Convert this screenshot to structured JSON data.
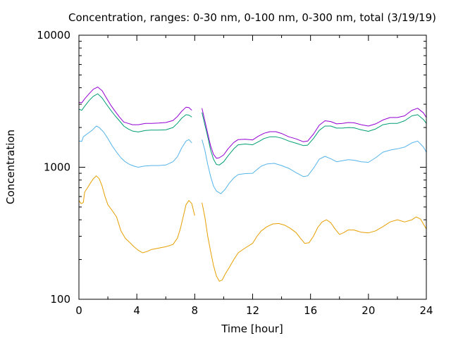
{
  "chart_data": {
    "type": "line",
    "title": "Concentration, ranges: 0-30 nm, 0-100 nm, 0-300 nm, total (3/19/19)",
    "xlabel": "Time [hour]",
    "ylabel": "Concentration",
    "xlim": [
      0,
      24
    ],
    "ylim": [
      100,
      10000
    ],
    "yscale": "log",
    "grid": false,
    "xticks": [
      "0",
      "4",
      "8",
      "12",
      "16",
      "20",
      "24"
    ],
    "yticks": [
      "100",
      "1000",
      "10000"
    ],
    "series": [
      {
        "color": "#e69f00",
        "segments": [
          [
            [
              0,
              560
            ],
            [
              0.15,
              530
            ],
            [
              0.3,
              540
            ],
            [
              0.4,
              650
            ],
            [
              0.6,
              700
            ],
            [
              0.8,
              760
            ],
            [
              1.0,
              820
            ],
            [
              1.2,
              860
            ],
            [
              1.4,
              820
            ],
            [
              1.6,
              720
            ],
            [
              1.8,
              600
            ],
            [
              2.0,
              520
            ],
            [
              2.3,
              470
            ],
            [
              2.6,
              420
            ],
            [
              2.9,
              330
            ],
            [
              3.2,
              290
            ],
            [
              3.5,
              270
            ],
            [
              3.8,
              250
            ],
            [
              4.1,
              235
            ],
            [
              4.4,
              225
            ],
            [
              4.7,
              230
            ],
            [
              5.0,
              238
            ],
            [
              5.5,
              244
            ],
            [
              6.0,
              250
            ],
            [
              6.5,
              260
            ],
            [
              6.8,
              290
            ],
            [
              7.0,
              340
            ],
            [
              7.2,
              420
            ],
            [
              7.4,
              520
            ],
            [
              7.6,
              560
            ],
            [
              7.8,
              530
            ],
            [
              8.0,
              430
            ]
          ],
          [
            [
              8.5,
              540
            ],
            [
              8.7,
              420
            ],
            [
              8.9,
              300
            ],
            [
              9.1,
              230
            ],
            [
              9.3,
              180
            ],
            [
              9.5,
              150
            ],
            [
              9.7,
              137
            ],
            [
              9.9,
              140
            ],
            [
              10.1,
              155
            ],
            [
              10.4,
              175
            ],
            [
              10.7,
              200
            ],
            [
              11.0,
              225
            ],
            [
              11.5,
              245
            ],
            [
              12.0,
              265
            ],
            [
              12.3,
              300
            ],
            [
              12.6,
              330
            ],
            [
              13.0,
              355
            ],
            [
              13.4,
              372
            ],
            [
              13.8,
              375
            ],
            [
              14.2,
              365
            ],
            [
              14.6,
              345
            ],
            [
              15.0,
              320
            ],
            [
              15.3,
              290
            ],
            [
              15.6,
              265
            ],
            [
              15.9,
              268
            ],
            [
              16.2,
              300
            ],
            [
              16.5,
              350
            ],
            [
              16.8,
              385
            ],
            [
              17.1,
              400
            ],
            [
              17.4,
              380
            ],
            [
              17.7,
              340
            ],
            [
              18.0,
              310
            ],
            [
              18.3,
              320
            ],
            [
              18.6,
              335
            ],
            [
              19.0,
              335
            ],
            [
              19.5,
              322
            ],
            [
              20.0,
              318
            ],
            [
              20.5,
              330
            ],
            [
              21.0,
              355
            ],
            [
              21.5,
              385
            ],
            [
              22.0,
              400
            ],
            [
              22.5,
              385
            ],
            [
              23.0,
              400
            ],
            [
              23.3,
              420
            ],
            [
              23.6,
              405
            ],
            [
              24.0,
              340
            ]
          ]
        ]
      },
      {
        "color": "#56b4e9",
        "segments": [
          [
            [
              0,
              1580
            ],
            [
              0.2,
              1570
            ],
            [
              0.3,
              1700
            ],
            [
              0.6,
              1800
            ],
            [
              0.9,
              1900
            ],
            [
              1.2,
              2050
            ],
            [
              1.4,
              2000
            ],
            [
              1.7,
              1850
            ],
            [
              2.0,
              1650
            ],
            [
              2.3,
              1450
            ],
            [
              2.6,
              1300
            ],
            [
              2.9,
              1180
            ],
            [
              3.2,
              1100
            ],
            [
              3.5,
              1050
            ],
            [
              3.8,
              1020
            ],
            [
              4.1,
              1000
            ],
            [
              4.5,
              1020
            ],
            [
              5.0,
              1030
            ],
            [
              5.5,
              1030
            ],
            [
              6.0,
              1040
            ],
            [
              6.5,
              1100
            ],
            [
              6.8,
              1200
            ],
            [
              7.1,
              1400
            ],
            [
              7.4,
              1580
            ],
            [
              7.6,
              1620
            ],
            [
              7.8,
              1530
            ]
          ],
          [
            [
              8.5,
              1620
            ],
            [
              8.7,
              1350
            ],
            [
              8.9,
              1050
            ],
            [
              9.1,
              850
            ],
            [
              9.3,
              720
            ],
            [
              9.5,
              660
            ],
            [
              9.8,
              630
            ],
            [
              10.1,
              680
            ],
            [
              10.4,
              760
            ],
            [
              10.7,
              830
            ],
            [
              11.0,
              880
            ],
            [
              11.5,
              895
            ],
            [
              12.0,
              900
            ],
            [
              12.3,
              960
            ],
            [
              12.6,
              1020
            ],
            [
              13.0,
              1060
            ],
            [
              13.5,
              1070
            ],
            [
              14.0,
              1030
            ],
            [
              14.5,
              980
            ],
            [
              15.0,
              910
            ],
            [
              15.5,
              850
            ],
            [
              15.8,
              860
            ],
            [
              16.2,
              980
            ],
            [
              16.6,
              1150
            ],
            [
              17.0,
              1210
            ],
            [
              17.4,
              1160
            ],
            [
              17.8,
              1100
            ],
            [
              18.2,
              1120
            ],
            [
              18.6,
              1140
            ],
            [
              19.0,
              1130
            ],
            [
              19.5,
              1100
            ],
            [
              20.0,
              1090
            ],
            [
              20.5,
              1180
            ],
            [
              21.0,
              1300
            ],
            [
              21.5,
              1350
            ],
            [
              22.0,
              1380
            ],
            [
              22.5,
              1420
            ],
            [
              23.0,
              1530
            ],
            [
              23.4,
              1580
            ],
            [
              23.8,
              1420
            ],
            [
              24.0,
              1300
            ]
          ]
        ]
      },
      {
        "color": "#009e73",
        "segments": [
          [
            [
              0,
              2750
            ],
            [
              0.2,
              2700
            ],
            [
              0.4,
              2900
            ],
            [
              0.7,
              3200
            ],
            [
              1.0,
              3450
            ],
            [
              1.3,
              3600
            ],
            [
              1.6,
              3350
            ],
            [
              1.9,
              3000
            ],
            [
              2.2,
              2700
            ],
            [
              2.5,
              2450
            ],
            [
              2.8,
              2250
            ],
            [
              3.1,
              2050
            ],
            [
              3.4,
              1950
            ],
            [
              3.7,
              1880
            ],
            [
              4.1,
              1850
            ],
            [
              4.6,
              1900
            ],
            [
              5.0,
              1910
            ],
            [
              5.5,
              1910
            ],
            [
              6.0,
              1920
            ],
            [
              6.5,
              2000
            ],
            [
              6.8,
              2150
            ],
            [
              7.1,
              2350
            ],
            [
              7.4,
              2500
            ],
            [
              7.6,
              2480
            ],
            [
              7.8,
              2400
            ]
          ],
          [
            [
              8.5,
              2600
            ],
            [
              8.7,
              2100
            ],
            [
              8.9,
              1700
            ],
            [
              9.1,
              1350
            ],
            [
              9.3,
              1150
            ],
            [
              9.5,
              1050
            ],
            [
              9.7,
              1040
            ],
            [
              10.0,
              1100
            ],
            [
              10.3,
              1220
            ],
            [
              10.7,
              1380
            ],
            [
              11.0,
              1480
            ],
            [
              11.5,
              1500
            ],
            [
              12.0,
              1480
            ],
            [
              12.4,
              1560
            ],
            [
              12.8,
              1650
            ],
            [
              13.2,
              1700
            ],
            [
              13.6,
              1700
            ],
            [
              14.0,
              1660
            ],
            [
              14.5,
              1580
            ],
            [
              15.0,
              1520
            ],
            [
              15.5,
              1460
            ],
            [
              15.8,
              1470
            ],
            [
              16.2,
              1650
            ],
            [
              16.6,
              1900
            ],
            [
              17.0,
              2050
            ],
            [
              17.4,
              2050
            ],
            [
              17.8,
              1980
            ],
            [
              18.2,
              1980
            ],
            [
              18.6,
              2000
            ],
            [
              19.0,
              1990
            ],
            [
              19.5,
              1920
            ],
            [
              20.0,
              1870
            ],
            [
              20.5,
              1950
            ],
            [
              21.0,
              2100
            ],
            [
              21.5,
              2150
            ],
            [
              22.0,
              2150
            ],
            [
              22.5,
              2250
            ],
            [
              23.0,
              2450
            ],
            [
              23.4,
              2500
            ],
            [
              23.8,
              2300
            ],
            [
              24.0,
              2150
            ]
          ]
        ]
      },
      {
        "color": "#9400d3",
        "segments": [
          [
            [
              0,
              3100
            ],
            [
              0.2,
              3080
            ],
            [
              0.4,
              3300
            ],
            [
              0.7,
              3600
            ],
            [
              1.0,
              3900
            ],
            [
              1.3,
              4050
            ],
            [
              1.6,
              3800
            ],
            [
              1.9,
              3350
            ],
            [
              2.2,
              2950
            ],
            [
              2.5,
              2650
            ],
            [
              2.8,
              2400
            ],
            [
              3.1,
              2200
            ],
            [
              3.4,
              2150
            ],
            [
              3.7,
              2100
            ],
            [
              4.1,
              2100
            ],
            [
              4.6,
              2150
            ],
            [
              5.0,
              2150
            ],
            [
              5.5,
              2160
            ],
            [
              6.0,
              2180
            ],
            [
              6.5,
              2260
            ],
            [
              6.8,
              2420
            ],
            [
              7.1,
              2650
            ],
            [
              7.4,
              2850
            ],
            [
              7.6,
              2830
            ],
            [
              7.8,
              2700
            ]
          ],
          [
            [
              8.5,
              2800
            ],
            [
              8.7,
              2250
            ],
            [
              8.9,
              1800
            ],
            [
              9.1,
              1450
            ],
            [
              9.3,
              1250
            ],
            [
              9.5,
              1170
            ],
            [
              9.7,
              1180
            ],
            [
              10.0,
              1240
            ],
            [
              10.3,
              1380
            ],
            [
              10.7,
              1540
            ],
            [
              11.0,
              1620
            ],
            [
              11.5,
              1630
            ],
            [
              12.0,
              1610
            ],
            [
              12.4,
              1720
            ],
            [
              12.8,
              1810
            ],
            [
              13.2,
              1860
            ],
            [
              13.6,
              1860
            ],
            [
              14.0,
              1800
            ],
            [
              14.5,
              1700
            ],
            [
              15.0,
              1640
            ],
            [
              15.5,
              1560
            ],
            [
              15.8,
              1580
            ],
            [
              16.2,
              1780
            ],
            [
              16.6,
              2080
            ],
            [
              17.0,
              2250
            ],
            [
              17.4,
              2220
            ],
            [
              17.8,
              2130
            ],
            [
              18.2,
              2150
            ],
            [
              18.6,
              2180
            ],
            [
              19.0,
              2170
            ],
            [
              19.5,
              2100
            ],
            [
              20.0,
              2050
            ],
            [
              20.5,
              2130
            ],
            [
              21.0,
              2280
            ],
            [
              21.5,
              2380
            ],
            [
              22.0,
              2380
            ],
            [
              22.5,
              2450
            ],
            [
              23.0,
              2700
            ],
            [
              23.4,
              2800
            ],
            [
              23.8,
              2580
            ],
            [
              24.0,
              2380
            ]
          ]
        ]
      }
    ]
  }
}
